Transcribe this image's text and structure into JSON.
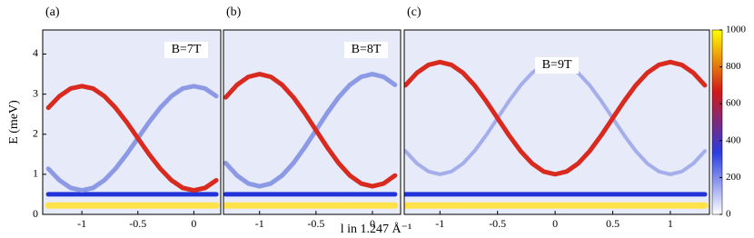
{
  "chart_data": [
    {
      "type": "line",
      "label": "(a)",
      "annotation": "B=7T",
      "ylabel": "E (meV)",
      "xlim": [
        -1.35,
        0.24
      ],
      "ylim": [
        0,
        4.6
      ],
      "xticks": [
        -1,
        -0.5,
        0
      ],
      "yticks": [
        0,
        1,
        2,
        3,
        4
      ],
      "x": [
        -1.3,
        -1.2,
        -1.1,
        -1.0,
        -0.9,
        -0.8,
        -0.7,
        -0.6,
        -0.5,
        -0.4,
        -0.3,
        -0.2,
        -0.1,
        0,
        0.1,
        0.2
      ],
      "series": [
        {
          "color": "#ffe24a",
          "width": 7,
          "values": [
            0.22,
            0.22,
            0.22,
            0.22,
            0.22,
            0.22,
            0.22,
            0.22,
            0.22,
            0.22,
            0.22,
            0.22,
            0.22,
            0.22,
            0.22,
            0.22
          ]
        },
        {
          "color": "#2233d8",
          "width": 5,
          "values": [
            0.5,
            0.5,
            0.5,
            0.5,
            0.5,
            0.5,
            0.5,
            0.5,
            0.5,
            0.5,
            0.5,
            0.5,
            0.5,
            0.5,
            0.5,
            0.5
          ]
        },
        {
          "color": "#8c9ae6",
          "width": 5,
          "values": [
            1.14,
            0.85,
            0.66,
            0.6,
            0.66,
            0.85,
            1.14,
            1.5,
            1.9,
            2.3,
            2.66,
            2.95,
            3.14,
            3.2,
            3.14,
            2.95
          ]
        },
        {
          "color": "#d82a1e",
          "width": 5,
          "values": [
            2.66,
            2.95,
            3.14,
            3.2,
            3.14,
            2.95,
            2.66,
            2.3,
            1.9,
            1.5,
            1.14,
            0.85,
            0.66,
            0.6,
            0.66,
            0.85
          ]
        }
      ]
    },
    {
      "type": "line",
      "label": "(b)",
      "annotation": "B=8T",
      "xlabel": "l in 1.247 Å⁻¹",
      "xlim": [
        -1.32,
        0.25
      ],
      "ylim": [
        0,
        4.6
      ],
      "xticks": [
        -1,
        -0.5,
        0
      ],
      "x": [
        -1.3,
        -1.2,
        -1.1,
        -1.0,
        -0.9,
        -0.8,
        -0.7,
        -0.6,
        -0.5,
        -0.4,
        -0.3,
        -0.2,
        -0.1,
        0,
        0.1,
        0.2
      ],
      "series": [
        {
          "color": "#ffe24a",
          "width": 7,
          "values": [
            0.22,
            0.22,
            0.22,
            0.22,
            0.22,
            0.22,
            0.22,
            0.22,
            0.22,
            0.22,
            0.22,
            0.22,
            0.22,
            0.22,
            0.22,
            0.22
          ]
        },
        {
          "color": "#2233d8",
          "width": 5,
          "values": [
            0.5,
            0.5,
            0.5,
            0.5,
            0.5,
            0.5,
            0.5,
            0.5,
            0.5,
            0.5,
            0.5,
            0.5,
            0.5,
            0.5,
            0.5,
            0.5
          ]
        },
        {
          "color": "#8c9ae6",
          "width": 5,
          "values": [
            1.28,
            0.97,
            0.77,
            0.7,
            0.77,
            0.97,
            1.28,
            1.67,
            2.1,
            2.53,
            2.92,
            3.23,
            3.43,
            3.5,
            3.43,
            3.23
          ]
        },
        {
          "color": "#d82a1e",
          "width": 5,
          "values": [
            2.92,
            3.23,
            3.43,
            3.5,
            3.43,
            3.23,
            2.92,
            2.53,
            2.1,
            1.67,
            1.28,
            0.97,
            0.77,
            0.7,
            0.77,
            0.97
          ]
        }
      ]
    },
    {
      "type": "line",
      "label": "(c)",
      "annotation": "B=9T",
      "xlim": [
        -1.31,
        1.34
      ],
      "ylim": [
        0,
        4.6
      ],
      "xticks": [
        -1,
        -0.5,
        0,
        0.5,
        1
      ],
      "x": [
        -1.3,
        -1.2,
        -1.1,
        -1.0,
        -0.9,
        -0.8,
        -0.7,
        -0.6,
        -0.5,
        -0.4,
        -0.3,
        -0.2,
        -0.1,
        0,
        0.1,
        0.2,
        0.3,
        0.4,
        0.5,
        0.6,
        0.7,
        0.8,
        0.9,
        1.0,
        1.1,
        1.2,
        1.3
      ],
      "series": [
        {
          "color": "#ffe24a",
          "width": 7,
          "values": [
            0.22,
            0.22,
            0.22,
            0.22,
            0.22,
            0.22,
            0.22,
            0.22,
            0.22,
            0.22,
            0.22,
            0.22,
            0.22,
            0.22,
            0.22,
            0.22,
            0.22,
            0.22,
            0.22,
            0.22,
            0.22,
            0.22,
            0.22,
            0.22,
            0.22,
            0.22,
            0.22
          ]
        },
        {
          "color": "#2233d8",
          "width": 5,
          "values": [
            0.5,
            0.5,
            0.5,
            0.5,
            0.5,
            0.5,
            0.5,
            0.5,
            0.5,
            0.5,
            0.5,
            0.5,
            0.5,
            0.5,
            0.5,
            0.5,
            0.5,
            0.5,
            0.5,
            0.5,
            0.5,
            0.5,
            0.5,
            0.5,
            0.5,
            0.5,
            0.5
          ]
        },
        {
          "color": "#a3aeea",
          "width": 4,
          "values": [
            1.58,
            1.27,
            1.07,
            1.0,
            1.07,
            1.27,
            1.58,
            1.97,
            2.4,
            2.83,
            3.22,
            3.53,
            3.73,
            3.8,
            3.73,
            3.53,
            3.22,
            2.83,
            2.4,
            1.97,
            1.58,
            1.27,
            1.07,
            1.0,
            1.07,
            1.27,
            1.58
          ]
        },
        {
          "color": "#d82a1e",
          "width": 5,
          "values": [
            3.22,
            3.53,
            3.73,
            3.8,
            3.73,
            3.53,
            3.22,
            2.83,
            2.4,
            1.97,
            1.58,
            1.27,
            1.07,
            1.0,
            1.07,
            1.27,
            1.58,
            1.97,
            2.4,
            2.83,
            3.22,
            3.53,
            3.73,
            3.8,
            3.73,
            3.53,
            3.22
          ]
        }
      ]
    },
    {
      "type": "colorbar",
      "clim": [
        0,
        1000
      ],
      "ticks": [
        0,
        200,
        400,
        600,
        800,
        1000
      ],
      "colors": [
        "#ffffff",
        "#2a3ee0",
        "#d01818",
        "#ffff00"
      ]
    }
  ]
}
